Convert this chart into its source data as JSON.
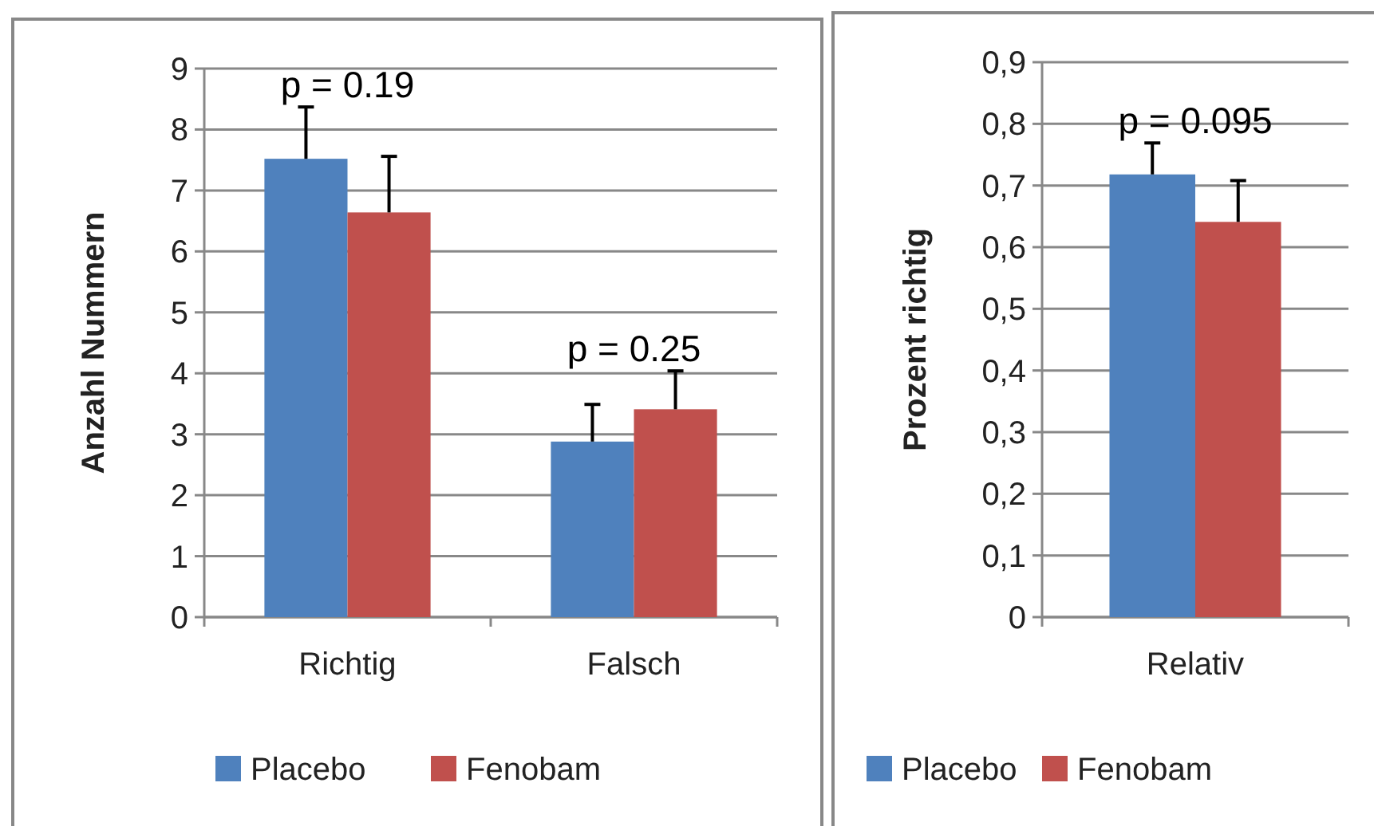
{
  "chart_data": [
    {
      "type": "bar",
      "ylabel": "Anzahl Nummern",
      "categories": [
        "Richtig",
        "Falsch"
      ],
      "series": [
        {
          "name": "Placebo",
          "color": "#4f81bd",
          "values": [
            7.52,
            2.88
          ],
          "errors": [
            [
              7.52,
              8.37
            ],
            [
              2.88,
              3.49
            ]
          ]
        },
        {
          "name": "Fenobam",
          "color": "#c0504d",
          "values": [
            6.64,
            3.41
          ],
          "errors": [
            [
              6.64,
              7.56
            ],
            [
              3.41,
              4.04
            ]
          ]
        }
      ],
      "ylim": [
        0,
        9
      ],
      "yticks": [
        0,
        1,
        2,
        3,
        4,
        5,
        6,
        7,
        8,
        9
      ],
      "grid": "y",
      "legend": "bottom",
      "annotations": [
        "p = 0.19",
        "p = 0.25"
      ]
    },
    {
      "type": "bar",
      "ylabel": "Prozent richtig",
      "categories": [
        "Relativ"
      ],
      "series": [
        {
          "name": "Placebo",
          "color": "#4f81bd",
          "values": [
            0.718
          ],
          "errors": [
            [
              0.718,
              0.769
            ]
          ]
        },
        {
          "name": "Fenobam",
          "color": "#c0504d",
          "values": [
            0.641
          ],
          "errors": [
            [
              0.641,
              0.708
            ]
          ]
        }
      ],
      "ylim": [
        0,
        0.9
      ],
      "yticks": [
        {
          "value": 0,
          "label": "0"
        },
        {
          "value": 0.1,
          "label": "0,1"
        },
        {
          "value": 0.2,
          "label": "0,2"
        },
        {
          "value": 0.3,
          "label": "0,3"
        },
        {
          "value": 0.4,
          "label": "0,4"
        },
        {
          "value": 0.5,
          "label": "0,5"
        },
        {
          "value": 0.6,
          "label": "0,6"
        },
        {
          "value": 0.7,
          "label": "0,7"
        },
        {
          "value": 0.8,
          "label": "0,8"
        },
        {
          "value": 0.9,
          "label": "0,9"
        }
      ],
      "grid": "y",
      "legend": "bottom",
      "annotations": [
        "p = 0.095"
      ]
    }
  ]
}
